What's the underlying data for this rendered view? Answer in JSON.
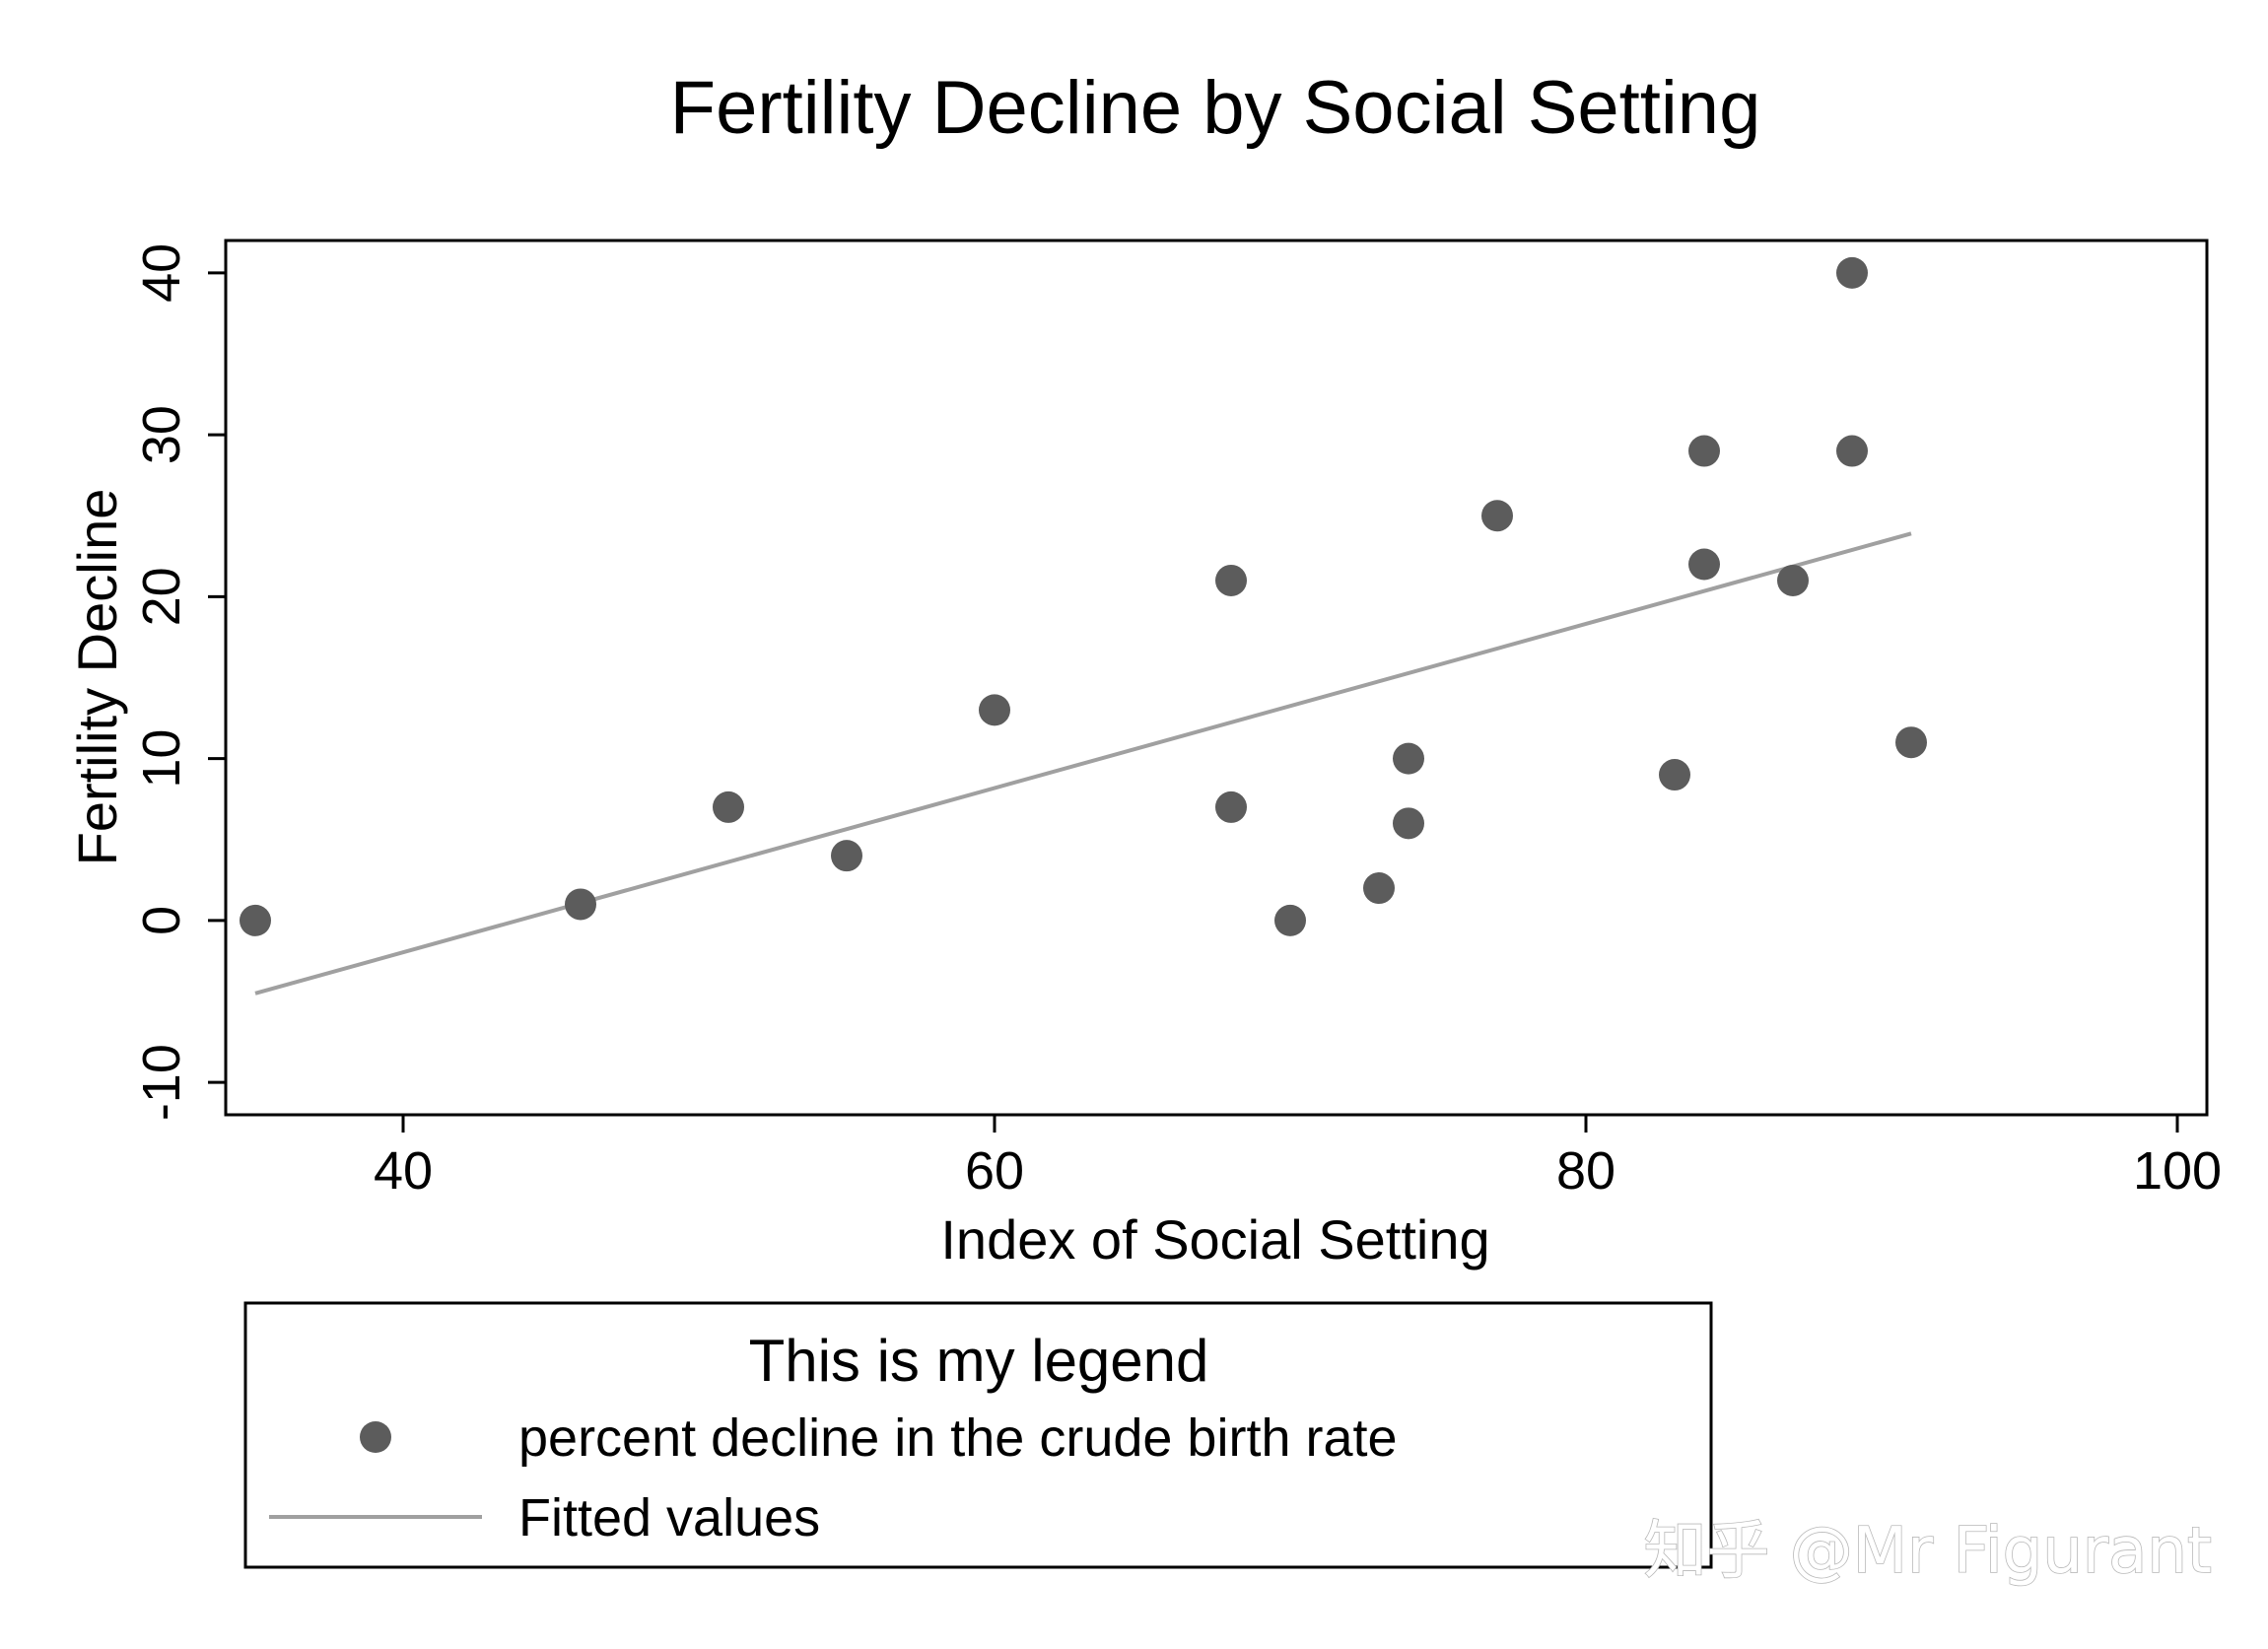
{
  "chart_data": {
    "type": "scatter",
    "title": "Fertility Decline by Social Setting",
    "xlabel": "Index of Social Setting",
    "ylabel": "Fertility Decline",
    "xlim": [
      34,
      101
    ],
    "ylim": [
      -12,
      42
    ],
    "x_ticks": [
      {
        "value": 40,
        "label": "40"
      },
      {
        "value": 60,
        "label": "60"
      },
      {
        "value": 80,
        "label": "80"
      },
      {
        "value": 100,
        "label": "100"
      }
    ],
    "y_ticks": [
      {
        "value": -10,
        "label": "-10"
      },
      {
        "value": 0,
        "label": "0"
      },
      {
        "value": 10,
        "label": "10"
      },
      {
        "value": 20,
        "label": "20"
      },
      {
        "value": 30,
        "label": "30"
      },
      {
        "value": 40,
        "label": "40"
      }
    ],
    "grid": false,
    "series": [
      {
        "name": "percent decline in the crude birth rate",
        "kind": "scatter",
        "color": "#5c5c5c",
        "points": [
          {
            "x": 35,
            "y": 0
          },
          {
            "x": 46,
            "y": 1
          },
          {
            "x": 51,
            "y": 7
          },
          {
            "x": 55,
            "y": 4
          },
          {
            "x": 60,
            "y": 13
          },
          {
            "x": 68,
            "y": 21
          },
          {
            "x": 68,
            "y": 7
          },
          {
            "x": 70,
            "y": 0
          },
          {
            "x": 73,
            "y": 2
          },
          {
            "x": 74,
            "y": 10
          },
          {
            "x": 74,
            "y": 6
          },
          {
            "x": 77,
            "y": 25
          },
          {
            "x": 83,
            "y": 9
          },
          {
            "x": 84,
            "y": 29
          },
          {
            "x": 84,
            "y": 22
          },
          {
            "x": 87,
            "y": 21
          },
          {
            "x": 89,
            "y": 40
          },
          {
            "x": 89,
            "y": 29
          },
          {
            "x": 91,
            "y": 11
          }
        ]
      },
      {
        "name": "Fitted values",
        "kind": "line",
        "color": "#a0a0a0",
        "points": [
          {
            "x": 35,
            "y": -4.5
          },
          {
            "x": 91,
            "y": 23.9
          }
        ]
      }
    ],
    "legend": {
      "title": "This is my legend",
      "position": "bottom-left",
      "entries": [
        {
          "label": "percent decline in the crude birth rate",
          "symbol": "dot"
        },
        {
          "label": "Fitted values",
          "symbol": "line"
        }
      ]
    }
  },
  "watermark": "知乎 @Mr Figurant"
}
